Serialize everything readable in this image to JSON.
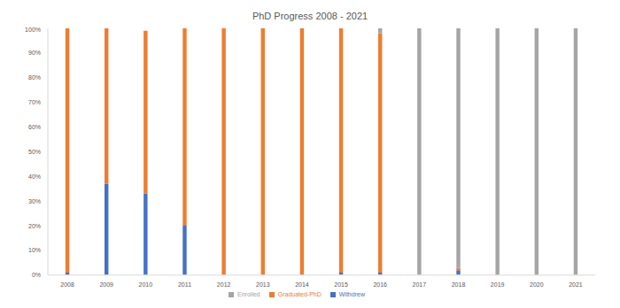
{
  "chart_data": {
    "type": "bar",
    "title": "PhD Progress 2008 - 2021",
    "categories": [
      "2008",
      "2009",
      "2010",
      "2011",
      "2012",
      "2013",
      "2014",
      "2015",
      "2016",
      "2017",
      "2018",
      "2019",
      "2020",
      "2021"
    ],
    "series": [
      {
        "name": "Withdrew",
        "color": "#4472c4",
        "values": [
          1,
          37,
          33,
          20,
          0,
          0,
          0,
          1,
          1,
          0,
          2,
          0,
          0,
          0
        ]
      },
      {
        "name": "Graduated-PhD",
        "color": "#ed7d31",
        "values": [
          99,
          63,
          66,
          80,
          100,
          100,
          100,
          99,
          97,
          0,
          1,
          0,
          0,
          0
        ]
      },
      {
        "name": "Enrolled",
        "color": "#a5a5a5",
        "values": [
          0,
          0,
          0,
          0,
          0,
          0,
          0,
          0,
          2,
          100,
          97,
          100,
          100,
          100
        ]
      }
    ],
    "ylim": [
      0,
      100
    ],
    "yticks": [
      {
        "value": 0,
        "label": "0%"
      },
      {
        "value": 10,
        "label": "10%"
      },
      {
        "value": 20,
        "label": "20%"
      },
      {
        "value": 30,
        "label": "30%"
      },
      {
        "value": 40,
        "label": "40%"
      },
      {
        "value": 50,
        "label": "50%"
      },
      {
        "value": 60,
        "label": "60%"
      },
      {
        "value": 70,
        "label": "70%"
      },
      {
        "value": 80,
        "label": "80%"
      },
      {
        "value": 90,
        "label": "90%"
      },
      {
        "value": 100,
        "label": "100%"
      }
    ],
    "stacked": true,
    "grid": false,
    "legend": "bottom"
  }
}
